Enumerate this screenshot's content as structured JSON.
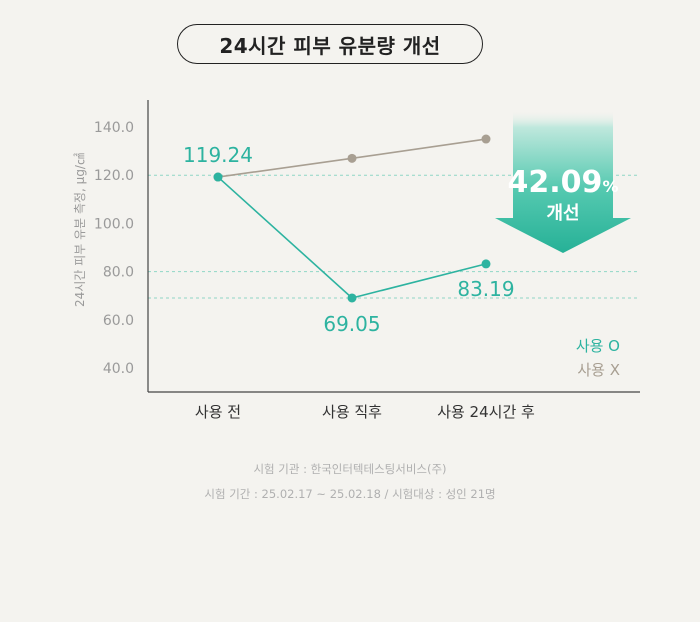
{
  "title": "24시간 피부 유분량 개선",
  "chart_data": {
    "type": "line",
    "categories": [
      "사용 전",
      "사용 직후",
      "사용 24시간 후"
    ],
    "series": [
      {
        "name": "사용 O",
        "values": [
          119.24,
          69.05,
          83.19
        ],
        "color": "#2db3a0"
      },
      {
        "name": "사용 X",
        "values": [
          119.24,
          127.0,
          135.0
        ],
        "color": "#a89f92"
      }
    ],
    "data_labels": [
      "119.24",
      "69.05",
      "83.19"
    ],
    "ylabel": "24시간 피부 유분 측정, μg/㎠",
    "yticks": [
      "140.0",
      "120.0",
      "100.0",
      "80.0",
      "60.0",
      "40.0"
    ],
    "ylim": [
      40,
      140
    ],
    "grid": "dashed at 120, 80 and 69.05",
    "legend": "right",
    "improvement": {
      "value": "42.09",
      "unit": "%",
      "label": "개선"
    }
  },
  "notes": {
    "institution": "시험 기관 : 한국인터텍테스팅서비스(주)",
    "period": "시험 기간 : 25.02.17 ~ 25.02.18 / 시험대상 : 성인 21명"
  }
}
